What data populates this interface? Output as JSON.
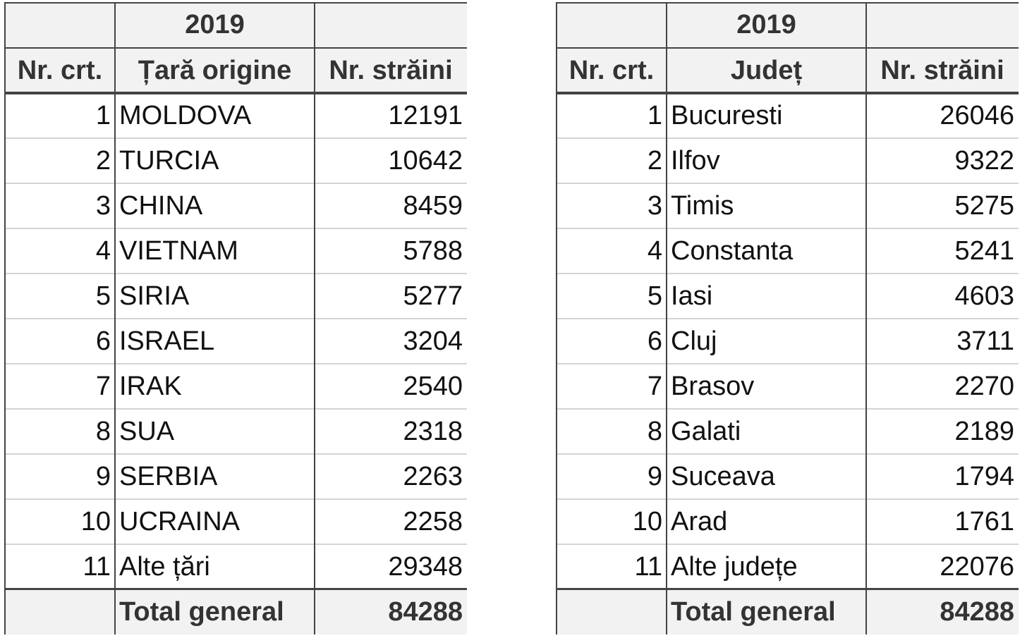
{
  "tables": [
    {
      "year": "2019",
      "headers": [
        "Nr. crt.",
        "Țară origine",
        "Nr. străini"
      ],
      "rows": [
        [
          1,
          "MOLDOVA",
          12191
        ],
        [
          2,
          "TURCIA",
          10642
        ],
        [
          3,
          "CHINA",
          8459
        ],
        [
          4,
          "VIETNAM",
          5788
        ],
        [
          5,
          "SIRIA",
          5277
        ],
        [
          6,
          "ISRAEL",
          3204
        ],
        [
          7,
          "IRAK",
          2540
        ],
        [
          8,
          "SUA",
          2318
        ],
        [
          9,
          "SERBIA",
          2263
        ],
        [
          10,
          "UCRAINA",
          2258
        ],
        [
          11,
          "Alte țări",
          29348
        ]
      ],
      "total": {
        "label": "Total general",
        "value": 84288
      }
    },
    {
      "year": "2019",
      "headers": [
        "Nr. crt.",
        "Județ",
        "Nr. străini"
      ],
      "rows": [
        [
          1,
          "Bucuresti",
          26046
        ],
        [
          2,
          "Ilfov",
          9322
        ],
        [
          3,
          "Timis",
          5275
        ],
        [
          4,
          "Constanta",
          5241
        ],
        [
          5,
          "Iasi",
          4603
        ],
        [
          6,
          "Cluj",
          3711
        ],
        [
          7,
          "Brasov",
          2270
        ],
        [
          8,
          "Galati",
          2189
        ],
        [
          9,
          "Suceava",
          1794
        ],
        [
          10,
          "Arad",
          1761
        ],
        [
          11,
          "Alte județe",
          22076
        ]
      ],
      "total": {
        "label": "Total general",
        "value": 84288
      }
    }
  ]
}
